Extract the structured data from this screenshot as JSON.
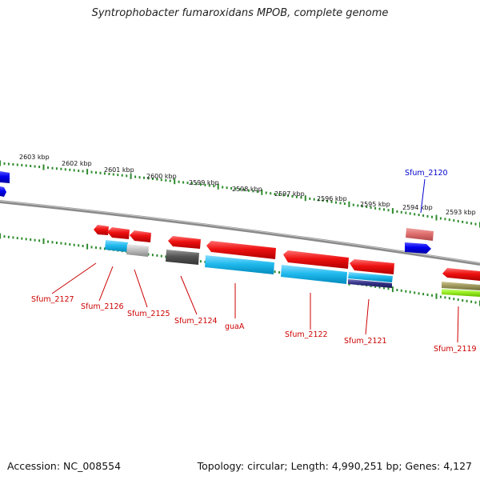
{
  "title": "Syntrophobacter fumaroxidans MPOB, complete genome",
  "accession": "Accession: NC_008554",
  "summary": "Topology: circular; Length: 4,990,251 bp; Genes: 4,127",
  "kbp_labels": [
    "2603 kbp",
    "2602 kbp",
    "2601 kbp",
    "2600 kbp",
    "2599 kbp",
    "2598 kbp",
    "2597 kbp",
    "2596 kbp",
    "2595 kbp",
    "2594 kbp",
    "2593 kbp"
  ],
  "gene_labels": [
    "Sfum_2127",
    "Sfum_2126",
    "Sfum_2125",
    "Sfum_2124",
    "guaA",
    "Sfum_2122",
    "Sfum_2121",
    "Sfum_2120",
    "Sfum_2119"
  ],
  "colors": {
    "backbone": "#8a8a8a",
    "tick": "#2e8b2e",
    "gene_red": "#ee1111",
    "gene_blue": "#0000ee",
    "gene_cyan": "#22bbee",
    "gene_gray": "#555555",
    "gene_navy": "#333388",
    "gene_pink": "#e07070",
    "gene_olive": "#a09a60",
    "gene_lime": "#99ee22",
    "label_red": "#cc0000",
    "label_blue": "#0000cc"
  }
}
